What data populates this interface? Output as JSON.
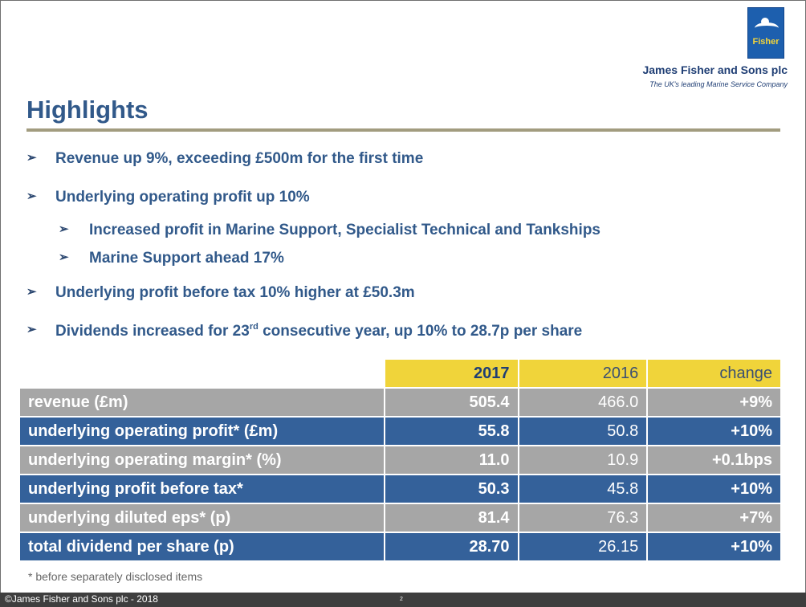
{
  "header": {
    "logo_word": "Fisher",
    "company": "James Fisher and Sons plc",
    "tagline": "The UK's leading Marine Service Company"
  },
  "title": "Highlights",
  "bullets": [
    {
      "text": "Revenue up 9%, exceeding £500m for the first time"
    },
    {
      "text": "Underlying operating profit up 10%"
    },
    {
      "text": "Increased profit in Marine Support, Specialist Technical and Tankships"
    },
    {
      "text": "Marine Support ahead 17%"
    },
    {
      "text": "Underlying profit before tax 10% higher at £50.3m"
    },
    {
      "text_before": "Dividends increased for 23",
      "sup": "rd",
      "text_after": " consecutive year, up 10% to 28.7p per share"
    }
  ],
  "bullet_marker": "➢",
  "table": {
    "header": {
      "y2017": "2017",
      "y2016": "2016",
      "change": "change"
    },
    "rows": [
      {
        "label": "revenue  (£m)",
        "y2017": "505.4",
        "y2016": "466.0",
        "change": "+9%"
      },
      {
        "label": "underlying  operating  profit*  (£m)",
        "y2017": "55.8",
        "y2016": "50.8",
        "change": "+10%"
      },
      {
        "label": "underlying  operating  margin*  (%)",
        "y2017": "11.0",
        "y2016": "10.9",
        "change": "+0.1bps"
      },
      {
        "label": "underlying  profit  before  tax*",
        "y2017": "50.3",
        "y2016": "45.8",
        "change": "+10%"
      },
      {
        "label": "underlying  diluted  eps*  (p)",
        "y2017": "81.4",
        "y2016": "76.3",
        "change": "+7%"
      },
      {
        "label": "total dividend  per share  (p)",
        "y2017": "28.70",
        "y2016": "26.15",
        "change": "+10%"
      }
    ]
  },
  "footnote": "* before separately disclosed items",
  "footer": {
    "copyright": "©James Fisher and Sons plc  - 2018",
    "page": "2"
  },
  "colors": {
    "title": "#31598a",
    "rule": "#a29c7f",
    "header_yellow": "#f0d43a",
    "row_grey": "#a6a6a6",
    "row_blue": "#34619a",
    "footer_bar": "#3e3e3e"
  }
}
